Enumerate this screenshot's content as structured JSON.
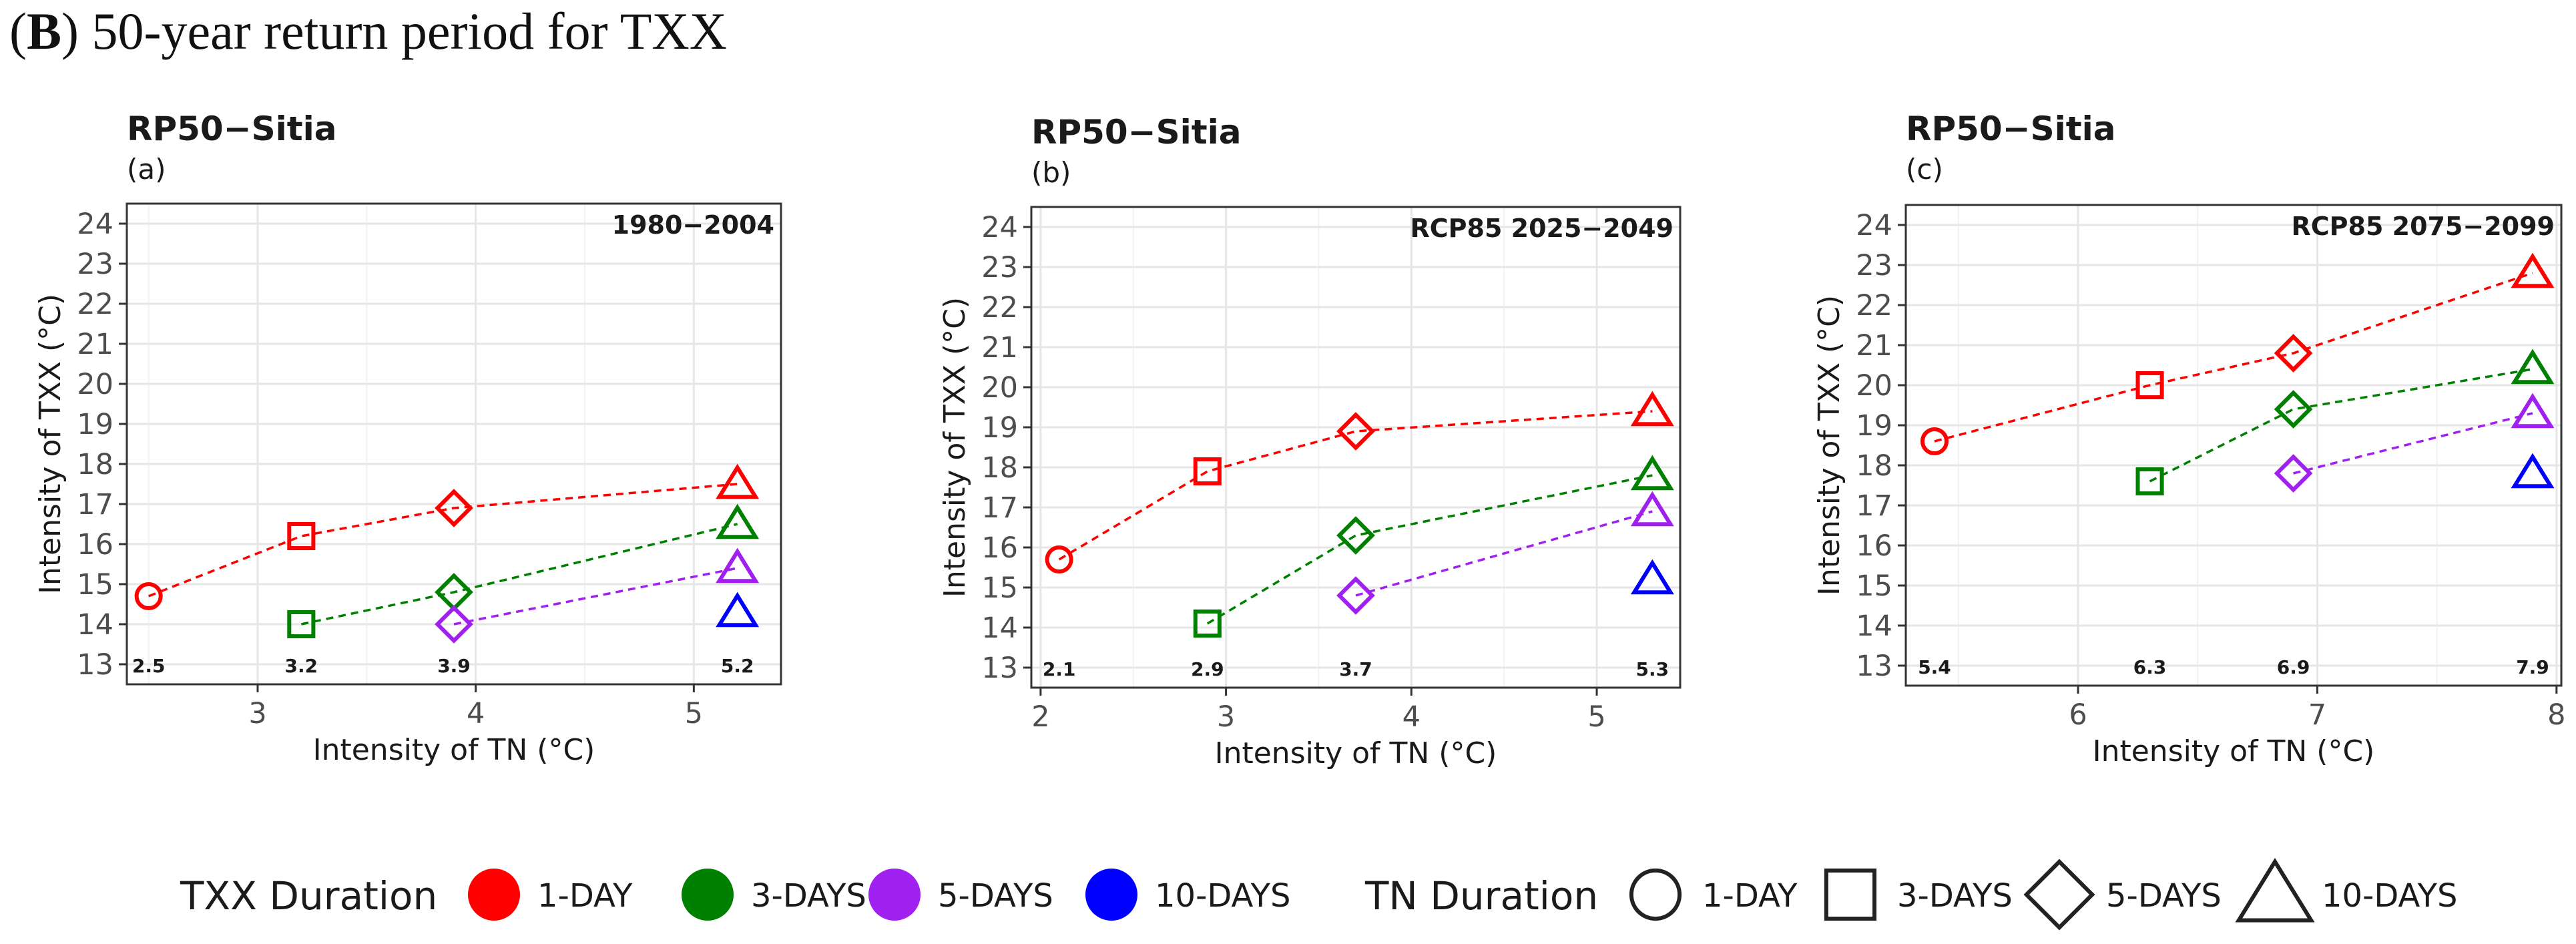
{
  "figure": {
    "heading_bold": "B",
    "heading_paren_open": "(",
    "heading_rest": ") 50-year return period for TXX"
  },
  "chart_data": [
    {
      "type": "scatter",
      "title": "RP50−Sitia",
      "panel_label": "(a)",
      "period_label": "1980−2004",
      "xlabel": "Intensity of TN (°C)",
      "ylabel": "Intensity of TXX (°C)",
      "xlim": [
        2.4,
        5.4
      ],
      "ylim": [
        12.5,
        24.5
      ],
      "x_ticks": [
        3,
        4,
        5
      ],
      "y_ticks": [
        13,
        14,
        15,
        16,
        17,
        18,
        19,
        20,
        21,
        22,
        23,
        24
      ],
      "x_values": [
        2.5,
        3.2,
        3.9,
        5.2
      ],
      "x_value_labels": [
        "2.5",
        "3.2",
        "3.9",
        "5.2"
      ],
      "grid": true,
      "series": [
        {
          "name": "1-DAY",
          "x": [
            2.5,
            3.2,
            3.9,
            5.2
          ],
          "y": [
            14.7,
            16.2,
            16.9,
            17.5
          ]
        },
        {
          "name": "3-DAYS",
          "x": [
            3.2,
            3.9,
            5.2
          ],
          "y": [
            14.0,
            14.8,
            16.5
          ]
        },
        {
          "name": "5-DAYS",
          "x": [
            3.9,
            5.2
          ],
          "y": [
            14.0,
            15.4
          ]
        },
        {
          "name": "10-DAYS",
          "x": [
            5.2
          ],
          "y": [
            14.3
          ]
        }
      ]
    },
    {
      "type": "scatter",
      "title": "RP50−Sitia",
      "panel_label": "(b)",
      "period_label": "RCP85 2025−2049",
      "xlabel": "Intensity of TN (°C)",
      "ylabel": "Intensity of TXX (°C)",
      "xlim": [
        1.95,
        5.45
      ],
      "ylim": [
        12.5,
        24.5
      ],
      "x_ticks": [
        2,
        3,
        4,
        5
      ],
      "y_ticks": [
        13,
        14,
        15,
        16,
        17,
        18,
        19,
        20,
        21,
        22,
        23,
        24
      ],
      "x_values": [
        2.1,
        2.9,
        3.7,
        5.3
      ],
      "x_value_labels": [
        "2.1",
        "2.9",
        "3.7",
        "5.3"
      ],
      "grid": true,
      "series": [
        {
          "name": "1-DAY",
          "x": [
            2.1,
            2.9,
            3.7,
            5.3
          ],
          "y": [
            15.7,
            17.9,
            18.9,
            19.4
          ]
        },
        {
          "name": "3-DAYS",
          "x": [
            2.9,
            3.7,
            5.3
          ],
          "y": [
            14.1,
            16.3,
            17.8
          ]
        },
        {
          "name": "5-DAYS",
          "x": [
            3.7,
            5.3
          ],
          "y": [
            14.8,
            16.9
          ]
        },
        {
          "name": "10-DAYS",
          "x": [
            5.3
          ],
          "y": [
            15.2
          ]
        }
      ]
    },
    {
      "type": "scatter",
      "title": "RP50−Sitia",
      "panel_label": "(c)",
      "period_label": "RCP85 2075−2099",
      "xlabel": "Intensity of TN (°C)",
      "ylabel": "Intensity of TXX (°C)",
      "xlim": [
        5.28,
        8.02
      ],
      "ylim": [
        12.5,
        24.5
      ],
      "x_ticks": [
        6,
        7,
        8
      ],
      "y_ticks": [
        13,
        14,
        15,
        16,
        17,
        18,
        19,
        20,
        21,
        22,
        23,
        24
      ],
      "x_values": [
        5.4,
        6.3,
        6.9,
        7.9
      ],
      "x_value_labels": [
        "5.4",
        "6.3",
        "6.9",
        "7.9"
      ],
      "grid": true,
      "series": [
        {
          "name": "1-DAY",
          "x": [
            5.4,
            6.3,
            6.9,
            7.9
          ],
          "y": [
            18.6,
            20.0,
            20.8,
            22.8
          ]
        },
        {
          "name": "3-DAYS",
          "x": [
            6.3,
            6.9,
            7.9
          ],
          "y": [
            17.6,
            19.4,
            20.4
          ]
        },
        {
          "name": "5-DAYS",
          "x": [
            6.9,
            7.9
          ],
          "y": [
            17.8,
            19.3
          ]
        },
        {
          "name": "10-DAYS",
          "x": [
            7.9
          ],
          "y": [
            17.8
          ]
        }
      ]
    }
  ],
  "legend": {
    "txx_title": "TXX Duration",
    "tn_title": "TN Duration",
    "txx_items": [
      {
        "label": "1-DAY",
        "color": "#ff0000"
      },
      {
        "label": "3-DAYS",
        "color": "#008000"
      },
      {
        "label": "5-DAYS",
        "color": "#a020f0"
      },
      {
        "label": "10-DAYS",
        "color": "#0000ff"
      }
    ],
    "tn_items": [
      {
        "label": "1-DAY",
        "shape": "circle"
      },
      {
        "label": "3-DAYS",
        "shape": "square"
      },
      {
        "label": "5-DAYS",
        "shape": "diamond"
      },
      {
        "label": "10-DAYS",
        "shape": "triangle"
      }
    ],
    "tn_shape_order": [
      "circle",
      "square",
      "diamond",
      "triangle"
    ]
  }
}
